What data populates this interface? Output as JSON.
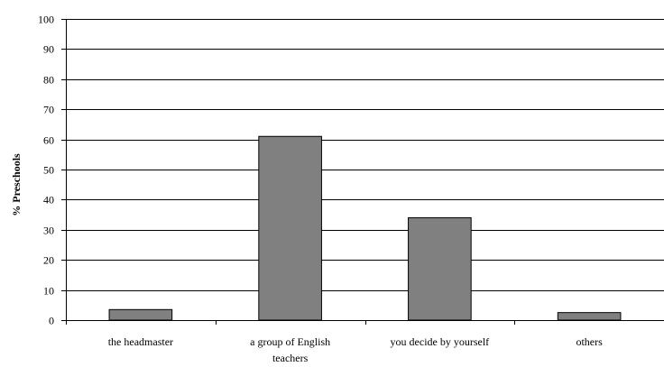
{
  "chart_data": {
    "type": "bar",
    "title": "",
    "xlabel": "",
    "ylabel": "% Preschools",
    "ylim": [
      0,
      100
    ],
    "yticks": [
      0,
      10,
      20,
      30,
      40,
      50,
      60,
      70,
      80,
      90,
      100
    ],
    "grid": true,
    "legend": "none",
    "bar_color": "#808080",
    "categories": [
      [
        "the headmaster"
      ],
      [
        "a group of English",
        "teachers"
      ],
      [
        "you decide by yourself"
      ],
      [
        "others"
      ]
    ],
    "values": [
      3.5,
      61,
      34,
      2.5
    ]
  }
}
